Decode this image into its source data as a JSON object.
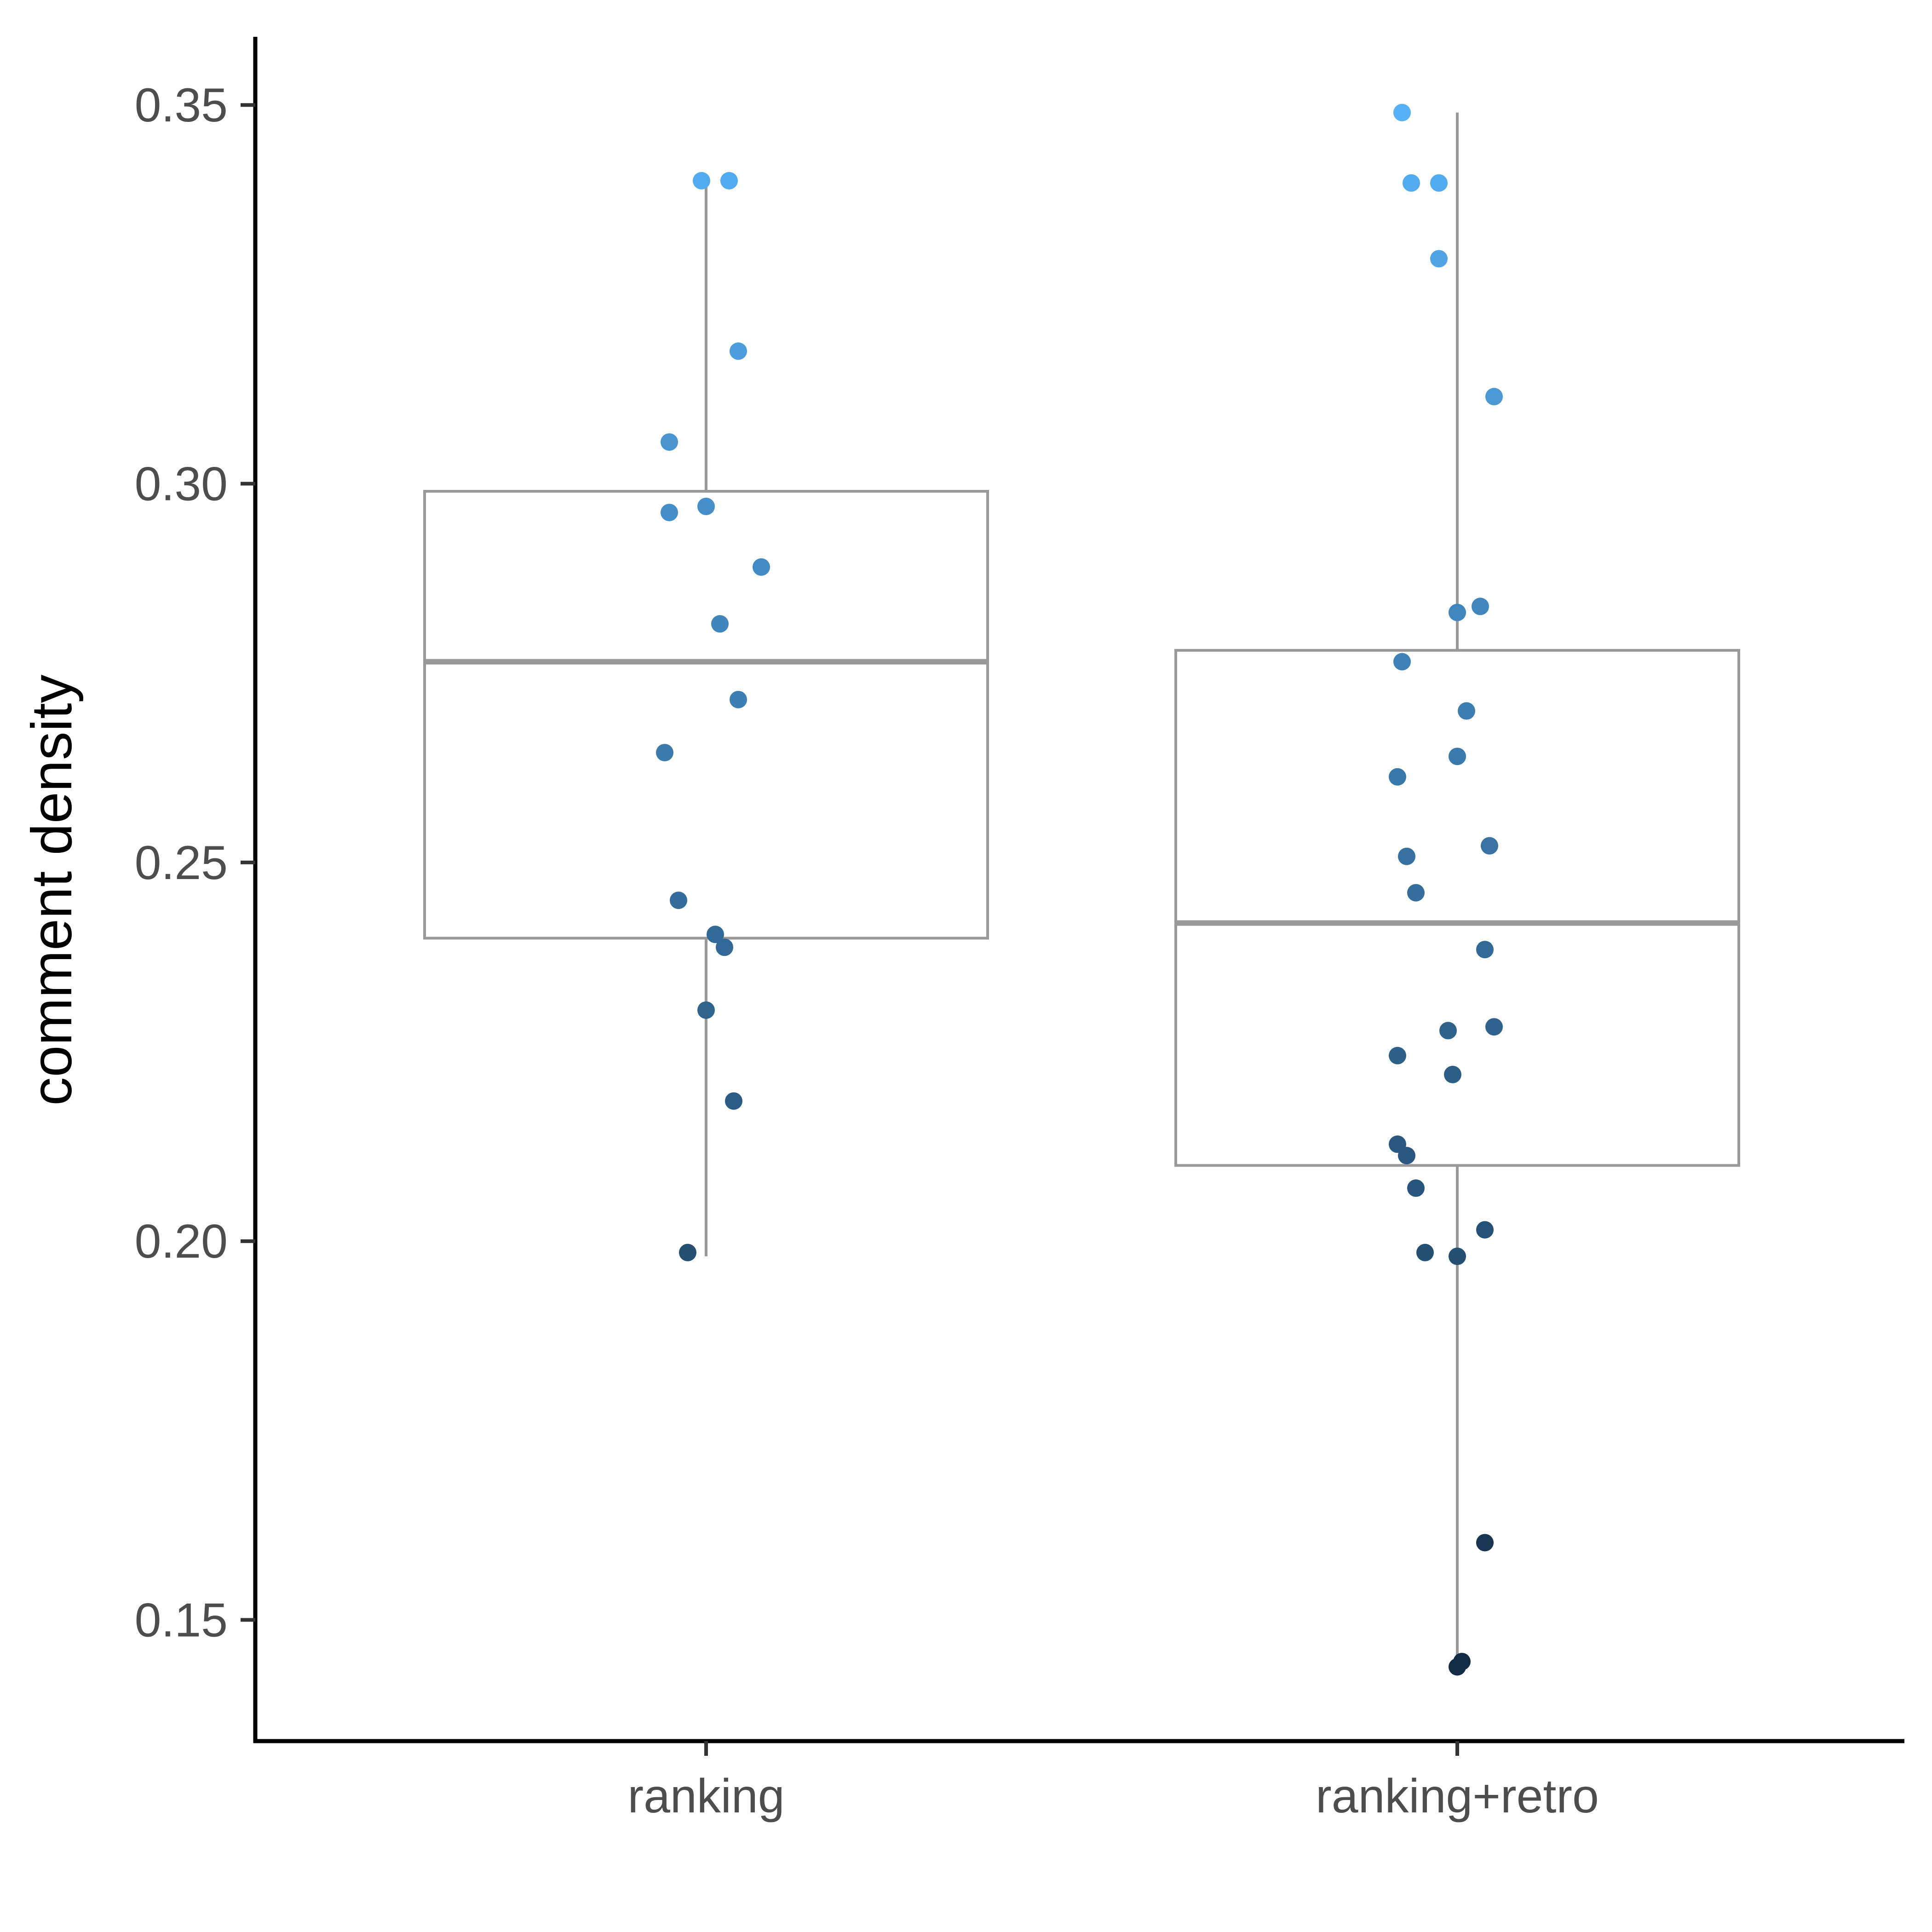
{
  "chart_data": {
    "type": "boxplot",
    "title": "",
    "xlabel": "",
    "ylabel": "comment density",
    "ylim": [
      0.134,
      0.359
    ],
    "yticks": [
      "0.15",
      "0.20",
      "0.25",
      "0.30",
      "0.35"
    ],
    "yticks_values": [
      0.15,
      0.2,
      0.25,
      0.3,
      0.35
    ],
    "grid": false,
    "legend": "none",
    "colors": {
      "box": "#999999",
      "axis": "#000000",
      "point_low": "#132B43",
      "point_high": "#56B1F7",
      "color_range": [
        0.143,
        0.349
      ]
    },
    "categories": [
      "ranking",
      "ranking+retro"
    ],
    "boxes": [
      {
        "category": "ranking",
        "lower_whisker": 0.198,
        "q1": 0.24,
        "median": 0.2765,
        "q3": 0.299,
        "upper_whisker": 0.34
      },
      {
        "category": "ranking+retro",
        "lower_whisker": 0.144,
        "q1": 0.21,
        "median": 0.242,
        "q3": 0.278,
        "upper_whisker": 0.349
      }
    ],
    "points": [
      [
        {
          "jitter": -0.01,
          "y": 0.34
        },
        {
          "jitter": 0.05,
          "y": 0.34
        },
        {
          "jitter": 0.07,
          "y": 0.3175
        },
        {
          "jitter": -0.08,
          "y": 0.3055
        },
        {
          "jitter": -0.08,
          "y": 0.2962
        },
        {
          "jitter": 0.0,
          "y": 0.297
        },
        {
          "jitter": 0.12,
          "y": 0.289
        },
        {
          "jitter": 0.03,
          "y": 0.2815
        },
        {
          "jitter": 0.07,
          "y": 0.2715
        },
        {
          "jitter": -0.09,
          "y": 0.2645
        },
        {
          "jitter": -0.06,
          "y": 0.245
        },
        {
          "jitter": 0.02,
          "y": 0.2405
        },
        {
          "jitter": 0.04,
          "y": 0.2388
        },
        {
          "jitter": 0.0,
          "y": 0.2305
        },
        {
          "jitter": 0.06,
          "y": 0.2185
        },
        {
          "jitter": -0.04,
          "y": 0.1985
        }
      ],
      [
        {
          "jitter": -0.12,
          "y": 0.349
        },
        {
          "jitter": -0.1,
          "y": 0.3397
        },
        {
          "jitter": -0.04,
          "y": 0.3397
        },
        {
          "jitter": -0.04,
          "y": 0.3297
        },
        {
          "jitter": 0.08,
          "y": 0.3115
        },
        {
          "jitter": 0.05,
          "y": 0.2838
        },
        {
          "jitter": 0.0,
          "y": 0.283
        },
        {
          "jitter": -0.12,
          "y": 0.2765
        },
        {
          "jitter": 0.02,
          "y": 0.27
        },
        {
          "jitter": 0.0,
          "y": 0.264
        },
        {
          "jitter": -0.13,
          "y": 0.2613
        },
        {
          "jitter": -0.11,
          "y": 0.2508
        },
        {
          "jitter": 0.07,
          "y": 0.2522
        },
        {
          "jitter": -0.09,
          "y": 0.246
        },
        {
          "jitter": 0.06,
          "y": 0.2385
        },
        {
          "jitter": -0.02,
          "y": 0.2278
        },
        {
          "jitter": 0.08,
          "y": 0.2283
        },
        {
          "jitter": -0.13,
          "y": 0.2245
        },
        {
          "jitter": -0.01,
          "y": 0.222
        },
        {
          "jitter": -0.13,
          "y": 0.2128
        },
        {
          "jitter": -0.11,
          "y": 0.2113
        },
        {
          "jitter": -0.09,
          "y": 0.207
        },
        {
          "jitter": 0.06,
          "y": 0.2015
        },
        {
          "jitter": -0.07,
          "y": 0.1985
        },
        {
          "jitter": 0.0,
          "y": 0.198
        },
        {
          "jitter": 0.06,
          "y": 0.1602
        },
        {
          "jitter": 0.01,
          "y": 0.1445
        },
        {
          "jitter": 0.0,
          "y": 0.1438
        }
      ]
    ]
  }
}
